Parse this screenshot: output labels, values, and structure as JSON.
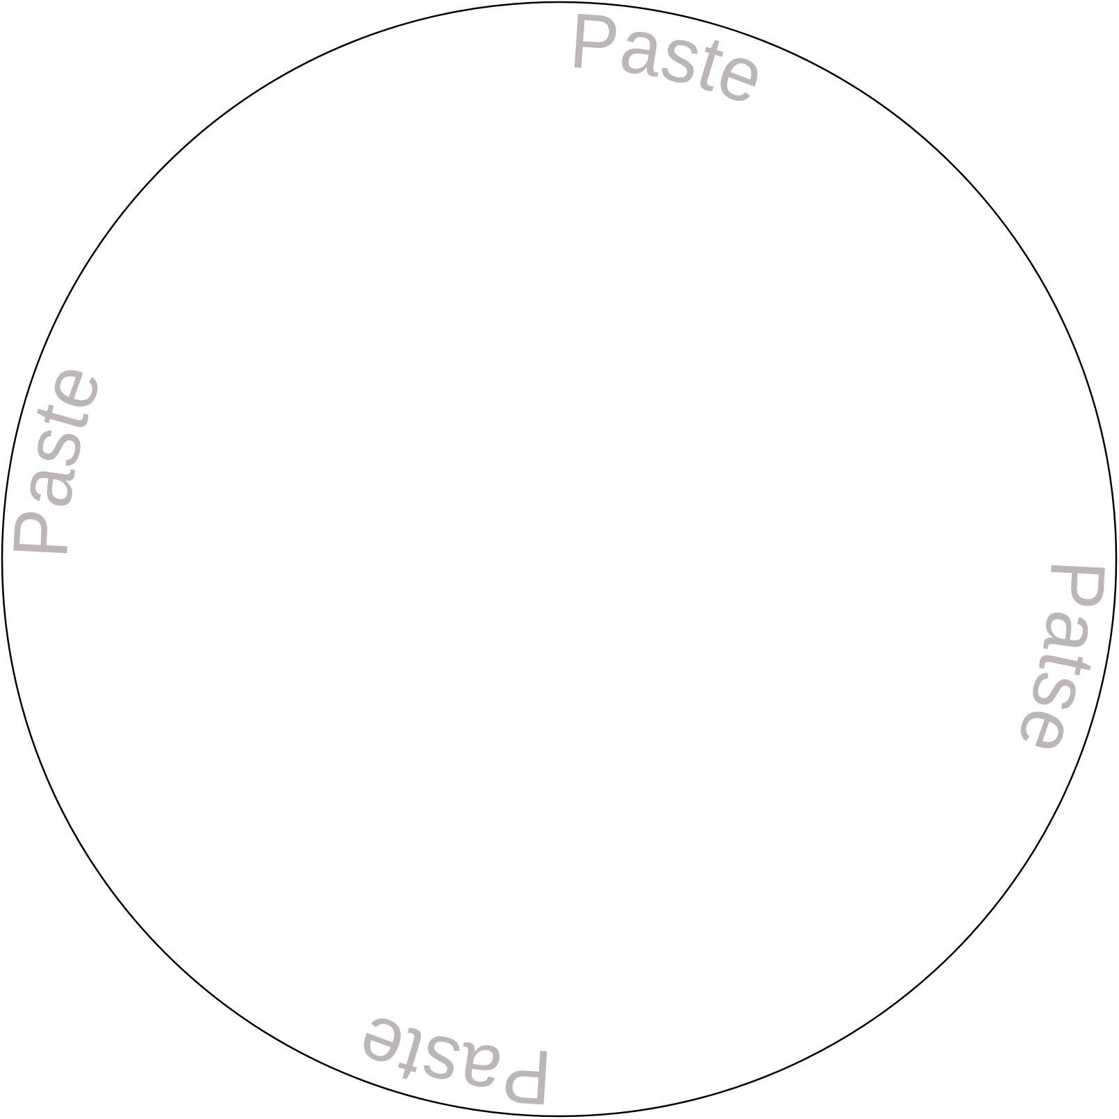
{
  "colors": {
    "outline": "#000000",
    "label": "#bcb6b6",
    "background": "#ffffff"
  },
  "labels": [
    {
      "text": "Paste",
      "position": "top"
    },
    {
      "text": "Patse",
      "position": "right"
    },
    {
      "text": "Paste",
      "position": "bottom"
    },
    {
      "text": "Paste",
      "position": "left"
    }
  ]
}
